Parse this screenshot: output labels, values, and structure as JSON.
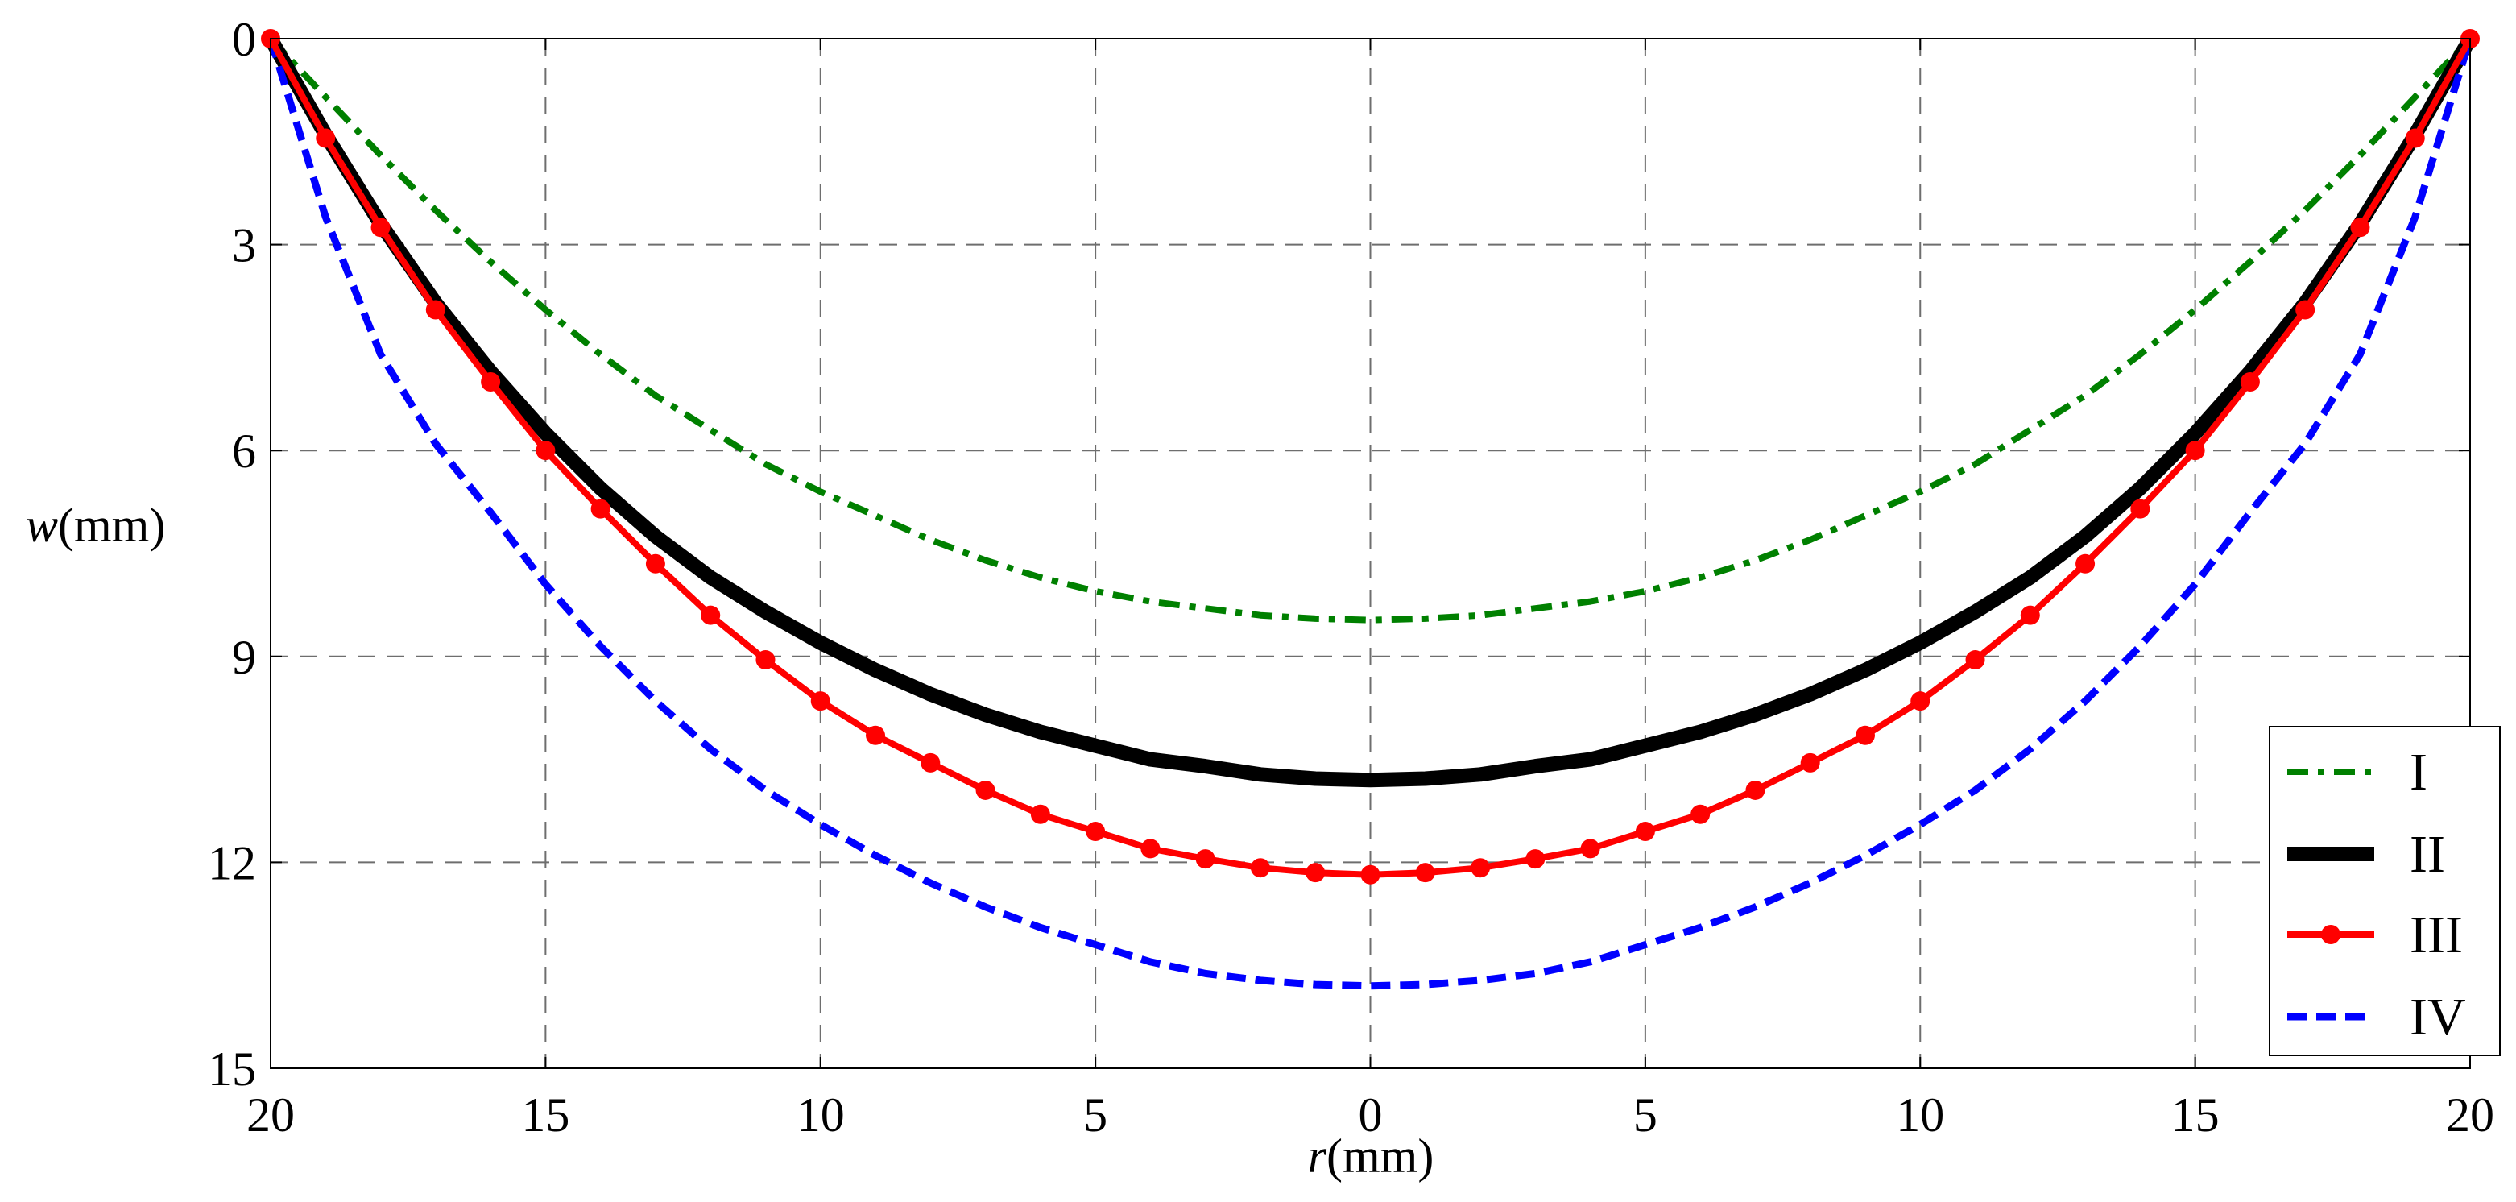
{
  "chart_data": {
    "type": "line",
    "title": "",
    "xlabel": {
      "italic": "r",
      "unit": "(mm)"
    },
    "ylabel": {
      "italic": "w",
      "unit": "(mm)"
    },
    "x_ticks": [
      {
        "value": -20,
        "label": "20"
      },
      {
        "value": -15,
        "label": "15"
      },
      {
        "value": -10,
        "label": "10"
      },
      {
        "value": -5,
        "label": "5"
      },
      {
        "value": 0,
        "label": "0"
      },
      {
        "value": 5,
        "label": "5"
      },
      {
        "value": 10,
        "label": "10"
      },
      {
        "value": 15,
        "label": "15"
      },
      {
        "value": 20,
        "label": "20"
      }
    ],
    "y_ticks": [
      {
        "value": 0,
        "label": "0"
      },
      {
        "value": 3,
        "label": "3"
      },
      {
        "value": 6,
        "label": "6"
      },
      {
        "value": 9,
        "label": "9"
      },
      {
        "value": 12,
        "label": "12"
      },
      {
        "value": 15,
        "label": "15"
      }
    ],
    "xlim": [
      -20,
      20
    ],
    "ylim": [
      0,
      15
    ],
    "y_inverted": true,
    "grid": true,
    "grid_style": "dashed",
    "legend_position": "bottom-right",
    "series": [
      {
        "name": "I",
        "color": "#008000",
        "style": "dash-dot",
        "x": [
          -20,
          -19,
          -18,
          -17,
          -16,
          -15,
          -14,
          -13,
          -12,
          -11,
          -10,
          -9,
          -8,
          -7,
          -6,
          -5,
          -4,
          -3,
          -2,
          -1,
          0,
          1,
          2,
          3,
          4,
          5,
          6,
          7,
          8,
          9,
          10,
          11,
          12,
          13,
          14,
          15,
          16,
          17,
          18,
          19,
          20
        ],
        "y": [
          0,
          0.85,
          1.7,
          2.5,
          3.25,
          3.95,
          4.6,
          5.2,
          5.7,
          6.2,
          6.6,
          6.95,
          7.3,
          7.6,
          7.85,
          8.05,
          8.2,
          8.3,
          8.4,
          8.45,
          8.47,
          8.45,
          8.4,
          8.3,
          8.2,
          8.05,
          7.85,
          7.6,
          7.3,
          6.95,
          6.6,
          6.2,
          5.7,
          5.2,
          4.6,
          3.95,
          3.25,
          2.5,
          1.7,
          0.85,
          0
        ]
      },
      {
        "name": "II",
        "color": "#000000",
        "style": "thick-solid",
        "x": [
          -20,
          -19,
          -18,
          -17,
          -16,
          -15,
          -14,
          -13,
          -12,
          -11,
          -10,
          -9,
          -8,
          -7,
          -6,
          -5,
          -4,
          -3,
          -2,
          -1,
          0,
          1,
          2,
          3,
          4,
          5,
          6,
          7,
          8,
          9,
          10,
          11,
          12,
          13,
          14,
          15,
          16,
          17,
          18,
          19,
          20
        ],
        "y": [
          0,
          1.4,
          2.7,
          3.85,
          4.85,
          5.75,
          6.55,
          7.25,
          7.85,
          8.35,
          8.8,
          9.2,
          9.55,
          9.85,
          10.1,
          10.3,
          10.5,
          10.6,
          10.72,
          10.78,
          10.8,
          10.78,
          10.72,
          10.6,
          10.5,
          10.3,
          10.1,
          9.85,
          9.55,
          9.2,
          8.8,
          8.35,
          7.85,
          7.25,
          6.55,
          5.75,
          4.85,
          3.85,
          2.7,
          1.4,
          0
        ]
      },
      {
        "name": "III",
        "color": "#ff0000",
        "style": "solid-marker",
        "x": [
          -20,
          -19,
          -18,
          -17,
          -16,
          -15,
          -14,
          -13,
          -12,
          -11,
          -10,
          -9,
          -8,
          -7,
          -6,
          -5,
          -4,
          -3,
          -2,
          -1,
          0,
          1,
          2,
          3,
          4,
          5,
          6,
          7,
          8,
          9,
          10,
          11,
          12,
          13,
          14,
          15,
          16,
          17,
          18,
          19,
          20
        ],
        "y": [
          0,
          1.45,
          2.75,
          3.95,
          5.0,
          6.0,
          6.85,
          7.65,
          8.4,
          9.05,
          9.65,
          10.15,
          10.55,
          10.95,
          11.3,
          11.55,
          11.8,
          11.95,
          12.08,
          12.15,
          12.18,
          12.15,
          12.08,
          11.95,
          11.8,
          11.55,
          11.3,
          10.95,
          10.55,
          10.15,
          9.65,
          9.05,
          8.4,
          7.65,
          6.85,
          6.0,
          5.0,
          3.95,
          2.75,
          1.45,
          0
        ]
      },
      {
        "name": "IV",
        "color": "#0000ff",
        "style": "dashed",
        "x": [
          -20,
          -19,
          -18,
          -17,
          -16,
          -15,
          -14,
          -13,
          -12,
          -11,
          -10,
          -9,
          -8,
          -7,
          -6,
          -5,
          -4,
          -3,
          -2,
          -1,
          0,
          1,
          2,
          3,
          4,
          5,
          6,
          7,
          8,
          9,
          10,
          11,
          12,
          13,
          14,
          15,
          16,
          17,
          18,
          19,
          20
        ],
        "y": [
          0,
          2.6,
          4.6,
          5.9,
          6.9,
          7.95,
          8.85,
          9.65,
          10.35,
          10.95,
          11.45,
          11.9,
          12.3,
          12.65,
          12.95,
          13.2,
          13.45,
          13.62,
          13.72,
          13.78,
          13.8,
          13.78,
          13.72,
          13.62,
          13.45,
          13.2,
          12.95,
          12.65,
          12.3,
          11.9,
          11.45,
          10.95,
          10.35,
          9.65,
          8.85,
          7.95,
          6.9,
          5.9,
          4.6,
          2.6,
          0
        ]
      }
    ]
  }
}
